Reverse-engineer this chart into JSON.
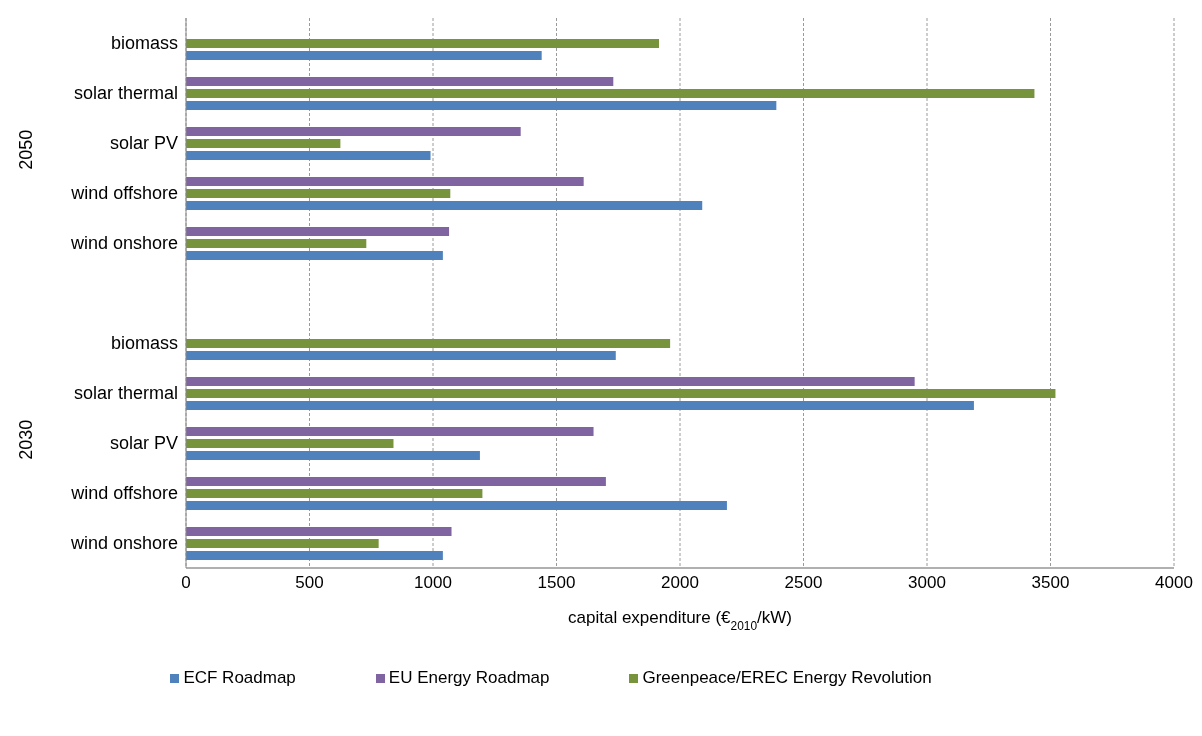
{
  "chart_data": {
    "type": "bar",
    "orientation": "horizontal",
    "xlabel": "capital expenditure (€$_{2010}$/kW)",
    "categories": [
      "biomass",
      "solar thermal",
      "solar PV",
      "wind offshore",
      "wind onshore",
      null,
      "biomass",
      "solar thermal",
      "solar PV",
      "wind offshore",
      "wind onshore"
    ],
    "series": [
      {
        "name": "EU Energy Roadmap",
        "color": "#8064a2",
        "values": [
          null,
          1730,
          1355,
          1610,
          1065,
          null,
          null,
          2950,
          1650,
          1700,
          1075
        ]
      },
      {
        "name": "Greenpeace/EREC Energy Revolution",
        "color": "#77933c",
        "values": [
          1915,
          3435,
          625,
          1070,
          730,
          null,
          1960,
          3520,
          840,
          1200,
          780
        ]
      },
      {
        "name": "ECF Roadmap",
        "color": "#4f81bd",
        "values": [
          1440,
          2390,
          990,
          2090,
          1040,
          null,
          1740,
          3190,
          1190,
          2190,
          1040
        ]
      }
    ],
    "xlim": [
      0,
      4000
    ],
    "xticks": [
      0,
      500,
      1000,
      1500,
      2000,
      2500,
      3000,
      3500,
      4000
    ],
    "grid": "x",
    "legend": "bottom",
    "annotations": [
      "2050",
      "2030"
    ]
  }
}
